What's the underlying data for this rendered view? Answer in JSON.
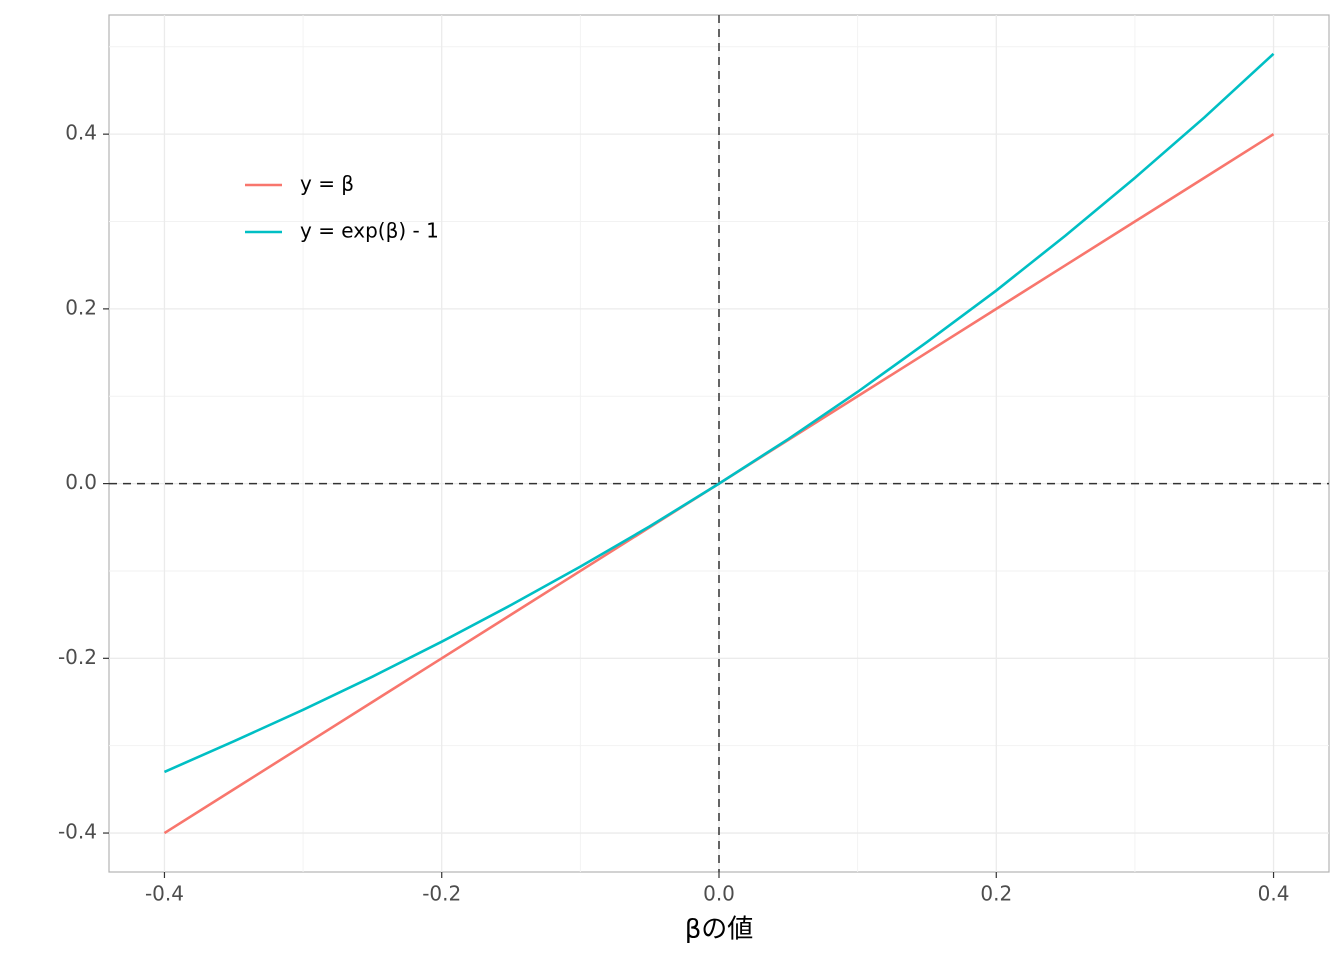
{
  "chart_data": {
    "type": "line",
    "x_label": "βの値",
    "x": [
      -0.4,
      -0.35,
      -0.3,
      -0.25,
      -0.2,
      -0.15,
      -0.1,
      -0.05,
      0,
      0.05,
      0.1,
      0.15,
      0.2,
      0.25,
      0.3,
      0.35,
      0.4
    ],
    "series": [
      {
        "name": "y = β",
        "color": "#f8766d",
        "values": [
          -0.4,
          -0.35,
          -0.3,
          -0.25,
          -0.2,
          -0.15,
          -0.1,
          -0.05,
          0,
          0.05,
          0.1,
          0.15,
          0.2,
          0.25,
          0.3,
          0.35,
          0.4
        ]
      },
      {
        "name": "y = exp(β) - 1",
        "color": "#00bfc4",
        "values": [
          -0.33,
          -0.295,
          -0.259,
          -0.221,
          -0.181,
          -0.139,
          -0.095,
          -0.049,
          0,
          0.051,
          0.105,
          0.162,
          0.221,
          0.284,
          0.35,
          0.419,
          0.492
        ]
      }
    ],
    "xlim": [
      -0.44,
      0.44
    ],
    "ylim": [
      -0.4446,
      0.5364
    ],
    "xticks": [
      -0.4,
      -0.2,
      {
        "value": 0,
        "label": "0.0"
      },
      0.2,
      0.4
    ],
    "yticks": [
      -0.4,
      -0.2,
      {
        "value": 0,
        "label": "0.0"
      },
      0.2,
      0.4
    ],
    "x_minor_grid": [
      -0.3,
      -0.1,
      0.1,
      0.3
    ],
    "y_minor_grid": [
      -0.3,
      -0.1,
      0.1,
      0.3,
      0.5
    ],
    "grid": true,
    "hline": 0,
    "vline": 0,
    "legend": "top-left"
  }
}
